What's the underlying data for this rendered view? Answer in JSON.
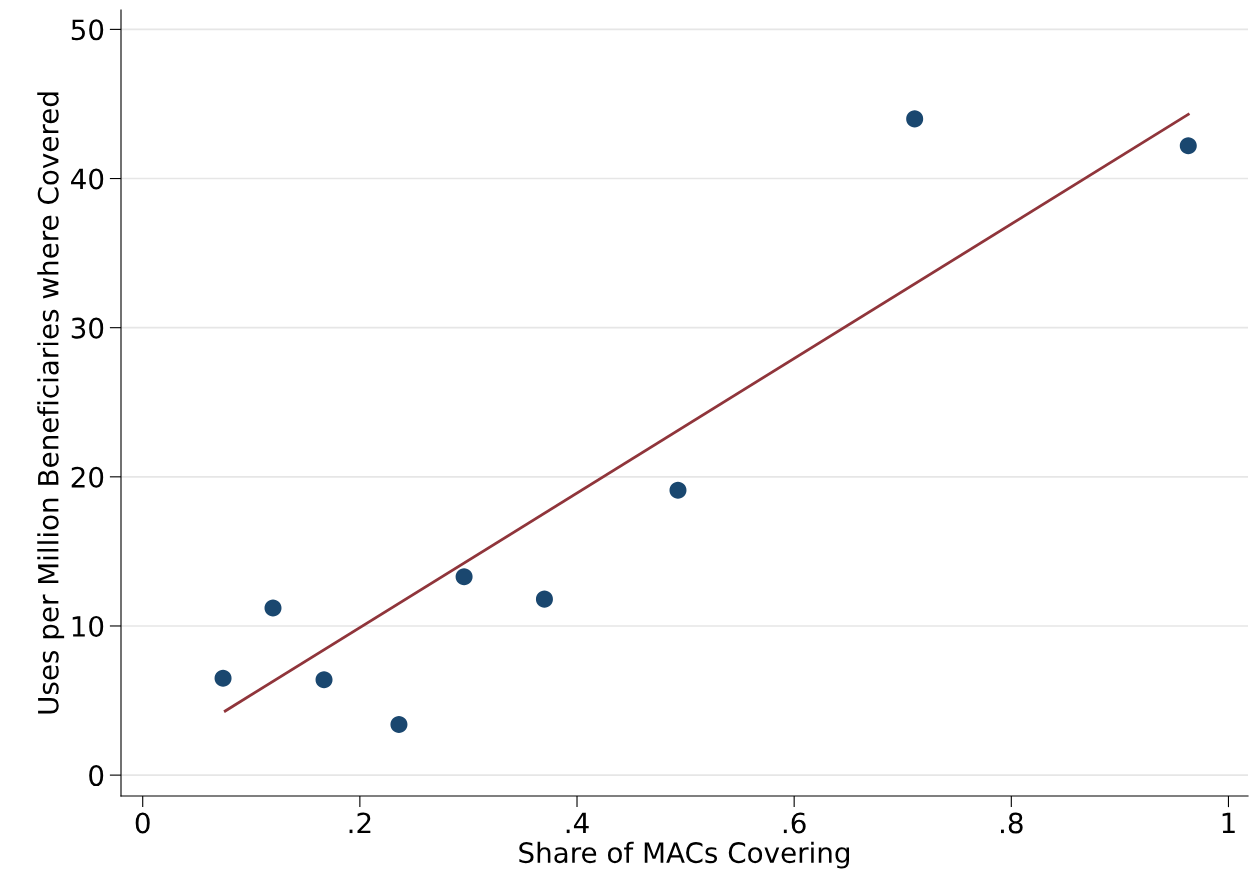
{
  "chart_data": {
    "type": "scatter",
    "xlabel": "Share of MACs Covering",
    "ylabel": "Uses per Million Beneficiaries where Covered",
    "series": [
      {
        "color": "#1a476f",
        "marker": "circle",
        "x": [
          0.074,
          0.12,
          0.167,
          0.236,
          0.296,
          0.37,
          0.493,
          0.711,
          0.963
        ],
        "values": [
          6.5,
          11.2,
          6.4,
          3.4,
          13.3,
          11.8,
          19.1,
          44.0,
          42.2
        ]
      },
      {
        "type": "line",
        "color": "#90353b",
        "x": [
          0.076,
          0.963
        ],
        "values": [
          4.3,
          44.3
        ]
      }
    ],
    "xlim": [
      -0.02,
      1.018
    ],
    "ylim": [
      -1.4,
      51.3
    ],
    "xticks": [
      0,
      {
        "value": 0.2,
        "label": ".2"
      },
      {
        "value": 0.4,
        "label": ".4"
      },
      {
        "value": 0.6,
        "label": ".6"
      },
      {
        "value": 0.8,
        "label": ".8"
      },
      1
    ],
    "yticks": [
      0,
      10,
      20,
      30,
      40,
      50
    ],
    "grid": "y"
  }
}
